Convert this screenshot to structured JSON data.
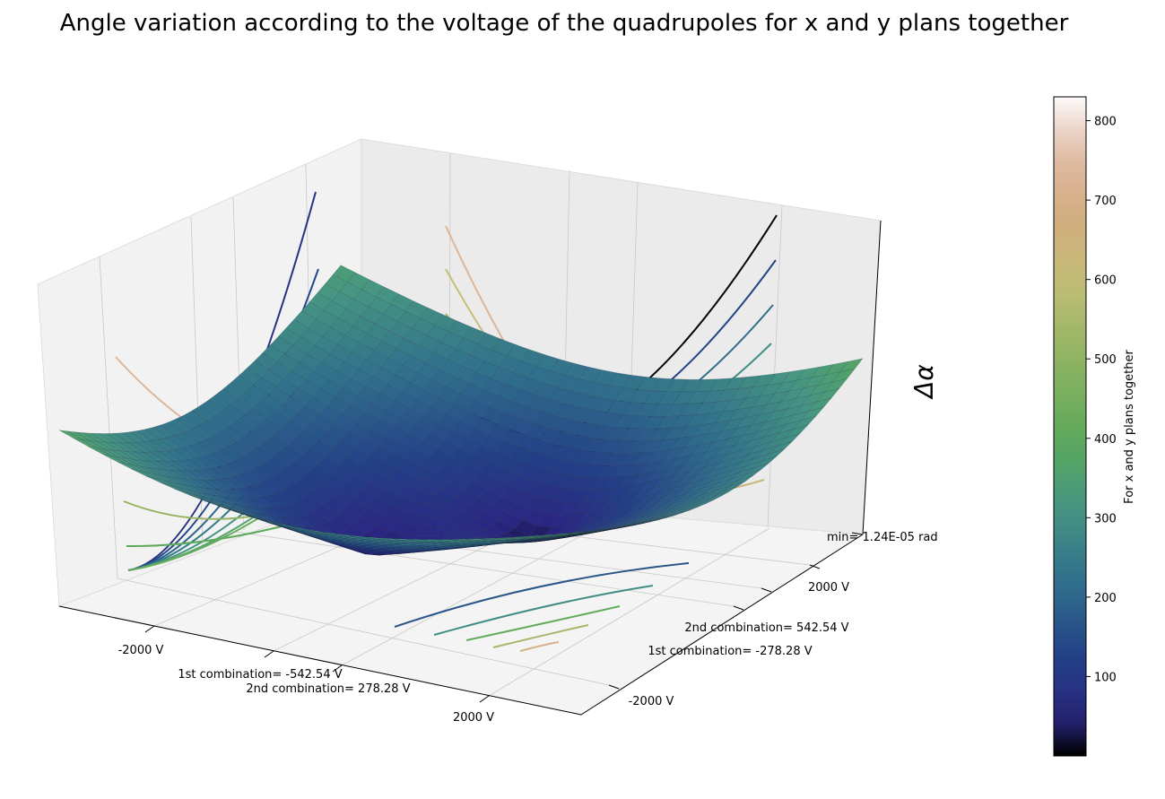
{
  "chart_data": {
    "type": "surface3d",
    "title": "Angle variation according to the voltage of the quadrupoles for x and y plans together",
    "zlabel": "Δα",
    "colorbar": {
      "label": "For x and y plans together",
      "ticks": [
        100,
        200,
        300,
        400,
        500,
        600,
        700,
        800
      ],
      "range": [
        0,
        830
      ],
      "colormap": "gist_earth"
    },
    "x_axis": {
      "ticks": [
        {
          "label": "-2000 V",
          "value": -2000
        },
        {
          "label": "1st combination= -542.54 V",
          "value": -542.54
        },
        {
          "label": "2nd combination= 278.28 V",
          "value": 278.28
        },
        {
          "label": "2000 V",
          "value": 2000
        }
      ]
    },
    "y_axis": {
      "ticks": [
        {
          "label": "-2000 V",
          "value": -2000
        },
        {
          "label": "1st combination= -278.28 V",
          "value": -278.28
        },
        {
          "label": "2nd combination= 542.54 V",
          "value": 542.54
        },
        {
          "label": "2000 V",
          "value": 2000
        }
      ]
    },
    "z_axis": {
      "ticks": [
        {
          "label": "min= 1.24E-05 rad",
          "value": 1.24e-05
        }
      ]
    },
    "surface": {
      "function": "two minima (V-shaped valley), peaks at back corners",
      "minima": [
        [
          -542.54,
          -278.28
        ],
        [
          278.28,
          542.54
        ]
      ],
      "z_min": 1.24e-05,
      "z_max": 830
    }
  }
}
